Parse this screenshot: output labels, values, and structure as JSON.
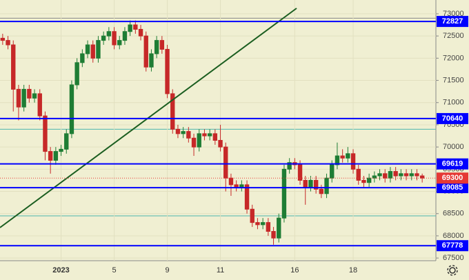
{
  "chart_data": {
    "type": "candlestick",
    "categories": [
      null,
      null,
      null,
      null,
      null,
      null,
      null,
      null,
      null,
      null,
      null,
      "2023",
      null,
      null,
      null,
      null,
      null,
      null,
      null,
      null,
      null,
      "5",
      null,
      null,
      null,
      null,
      null,
      null,
      null,
      null,
      null,
      "9",
      null,
      null,
      null,
      null,
      null,
      null,
      null,
      null,
      null,
      "11",
      null,
      null,
      null,
      null,
      null,
      null,
      null,
      null,
      null,
      null,
      null,
      null,
      null,
      "16",
      null,
      null,
      null,
      null,
      null,
      null,
      null,
      null,
      null,
      null,
      "18",
      null,
      null,
      null,
      null,
      null,
      null,
      null,
      null,
      null,
      null,
      null,
      null,
      null
    ],
    "open": [
      72450,
      72400,
      72300,
      71300,
      70900,
      71300,
      71100,
      71200,
      70700,
      69900,
      69700,
      69900,
      69950,
      70300,
      71400,
      71900,
      72100,
      72300,
      72000,
      72400,
      72500,
      72600,
      72300,
      72400,
      72600,
      72750,
      72650,
      72500,
      71800,
      72100,
      72400,
      72200,
      71200,
      70400,
      70300,
      70350,
      70200,
      70000,
      70300,
      70250,
      70300,
      70150,
      70000,
      69300,
      69150,
      69100,
      69150,
      68600,
      68300,
      68250,
      68300,
      68100,
      67950,
      68400,
      69500,
      69650,
      69600,
      69250,
      69100,
      69250,
      69050,
      68950,
      69300,
      69600,
      69800,
      69750,
      69850,
      69500,
      69250,
      69200,
      69300,
      69350,
      69400,
      69300,
      69450,
      69350,
      69400,
      69350,
      69400,
      69350
    ],
    "high": [
      72550,
      72500,
      72400,
      71400,
      71400,
      71400,
      71300,
      71300,
      70800,
      70000,
      70000,
      70050,
      70400,
      71500,
      72000,
      72200,
      72400,
      72400,
      72500,
      72600,
      72700,
      72700,
      72500,
      72700,
      72850,
      72850,
      72750,
      72600,
      72200,
      72500,
      72500,
      72300,
      71300,
      70500,
      70450,
      70450,
      70300,
      70400,
      70400,
      70400,
      70400,
      70500,
      70100,
      69400,
      69250,
      69250,
      69250,
      68700,
      68400,
      68400,
      68400,
      68200,
      68500,
      69600,
      69750,
      69750,
      69700,
      69350,
      69350,
      69350,
      69150,
      69400,
      69700,
      70100,
      69950,
      70000,
      69950,
      69600,
      69350,
      69400,
      69450,
      69500,
      69500,
      69550,
      69550,
      69500,
      69500,
      69500,
      69500,
      69400
    ],
    "low": [
      72300,
      72200,
      70800,
      70600,
      70800,
      71000,
      71000,
      70600,
      69700,
      69400,
      69600,
      69800,
      69850,
      70200,
      71300,
      71800,
      72000,
      71900,
      71900,
      72300,
      72400,
      72200,
      72200,
      72300,
      72500,
      72550,
      72400,
      71700,
      71700,
      72000,
      72100,
      71100,
      70300,
      70200,
      70200,
      70100,
      69800,
      69900,
      70150,
      70150,
      70050,
      69900,
      69000,
      68900,
      69000,
      69000,
      68500,
      68200,
      68150,
      68150,
      68000,
      67800,
      67850,
      68300,
      69400,
      69500,
      69150,
      68700,
      69000,
      68950,
      68850,
      68850,
      69200,
      69500,
      69650,
      69650,
      69400,
      69150,
      69100,
      69100,
      69200,
      69250,
      69200,
      69200,
      69250,
      69250,
      69250,
      69250,
      69250,
      69200
    ],
    "close": [
      72400,
      72300,
      71300,
      70900,
      71300,
      71100,
      71200,
      70700,
      69900,
      69700,
      69900,
      69950,
      70300,
      71400,
      71900,
      72100,
      72300,
      72000,
      72400,
      72500,
      72600,
      72300,
      72400,
      72600,
      72750,
      72650,
      72500,
      71800,
      72100,
      72400,
      72200,
      71200,
      70400,
      70300,
      70350,
      70200,
      70000,
      70300,
      70250,
      70300,
      70150,
      70000,
      69300,
      69150,
      69100,
      69150,
      68600,
      68300,
      68250,
      68300,
      68100,
      67950,
      68400,
      69500,
      69650,
      69600,
      69250,
      69100,
      69250,
      69050,
      68950,
      69300,
      69600,
      69800,
      69750,
      69850,
      69500,
      69250,
      69200,
      69300,
      69350,
      69400,
      69300,
      69450,
      69350,
      69400,
      69350,
      69400,
      69350,
      69300
    ],
    "up_color": "#1e7d34",
    "down_color": "#c62828",
    "ylim": [
      67440,
      73310
    ],
    "yticks": [
      67500,
      68000,
      68500,
      69000,
      69500,
      70000,
      70500,
      71000,
      71500,
      72000,
      72500,
      73000
    ],
    "grid": true,
    "levels": [
      {
        "value": 72827,
        "color": "#0000ff"
      },
      {
        "value": 70640,
        "color": "#0000ff"
      },
      {
        "value": 69619,
        "color": "#0000ff"
      },
      {
        "value": 69085,
        "color": "#0000ff"
      },
      {
        "value": 67778,
        "color": "#0000ff"
      }
    ],
    "minor_levels": [
      {
        "value": 72900,
        "color": "#888888"
      },
      {
        "value": 70400,
        "color": "#4db6ac"
      },
      {
        "value": 68450,
        "color": "#4db6ac"
      }
    ],
    "last_price": {
      "value": 69300,
      "color": "#e53935"
    }
  }
}
